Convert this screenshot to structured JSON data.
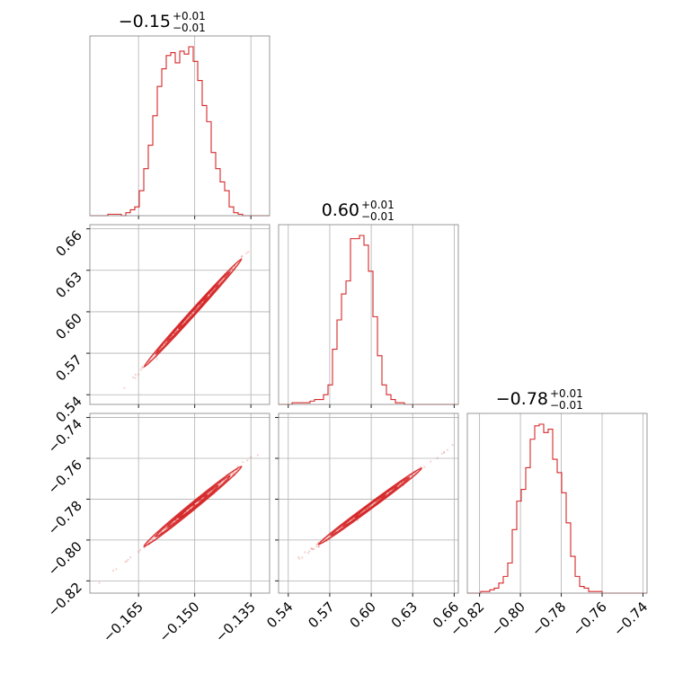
{
  "chart_data": {
    "type": "corner",
    "color": "#d62728",
    "parameters": [
      {
        "title": {
          "value": "−0.15",
          "plus": "+0.01",
          "minus": "−0.01"
        },
        "range": [
          -0.178,
          -0.13
        ],
        "ticks": [
          -0.165,
          -0.15,
          -0.135
        ],
        "tick_labels": [
          "−0.165",
          "−0.150",
          "−0.135"
        ],
        "hist": {
          "edges_start": -0.178,
          "bin_width": 0.0012,
          "counts": [
            0,
            0,
            0,
            0,
            1,
            1,
            1,
            0,
            2,
            4,
            6,
            17,
            32,
            48,
            68,
            88,
            100,
            109,
            111,
            104,
            112,
            110,
            115,
            105,
            92,
            75,
            64,
            43,
            32,
            23,
            17,
            6,
            2,
            1,
            0,
            0,
            0,
            0,
            0,
            0
          ]
        }
      },
      {
        "title": {
          "value": "0.60",
          "plus": "+0.01",
          "minus": "−0.01"
        },
        "range": [
          0.533,
          0.663
        ],
        "ticks": [
          0.54,
          0.57,
          0.6,
          0.63,
          0.66
        ],
        "tick_labels": [
          "0.54",
          "0.57",
          "0.60",
          "0.63",
          "0.66"
        ],
        "hist": {
          "edges_start": 0.533,
          "bin_width": 0.00325,
          "counts": [
            0,
            0,
            0,
            1,
            1,
            1,
            1,
            2,
            3,
            3,
            6,
            12,
            34,
            52,
            68,
            76,
            102,
            102,
            104,
            98,
            82,
            54,
            30,
            12,
            6,
            3,
            1,
            1,
            0,
            0,
            0,
            0,
            0,
            0,
            0,
            0,
            0,
            0,
            0,
            0
          ]
        }
      },
      {
        "title": {
          "value": "−0.78",
          "plus": "+0.01",
          "minus": "−0.01"
        },
        "range": [
          -0.826,
          -0.738
        ],
        "ticks": [
          -0.82,
          -0.8,
          -0.78,
          -0.76,
          -0.74
        ],
        "tick_labels": [
          "−0.82",
          "−0.80",
          "−0.78",
          "−0.76",
          "−0.74"
        ],
        "hist": {
          "edges_start": -0.826,
          "bin_width": 0.0022,
          "counts": [
            0,
            0,
            0,
            1,
            1,
            2,
            3,
            6,
            10,
            18,
            38,
            55,
            62,
            75,
            92,
            100,
            101,
            96,
            98,
            80,
            72,
            60,
            42,
            22,
            10,
            4,
            3,
            1,
            1,
            1,
            0,
            0,
            0,
            0,
            0,
            0,
            0,
            0,
            0,
            0
          ]
        }
      }
    ],
    "pairs": [
      {
        "row": 1,
        "col": 0,
        "center": [
          -0.1505,
          0.5992
        ],
        "slope": 3.0,
        "spread": 0.0011,
        "sd_along": 0.0062
      },
      {
        "row": 2,
        "col": 0,
        "center": [
          -0.1505,
          -0.7835
        ],
        "slope": 1.5,
        "spread": 0.0008,
        "sd_along": 0.0062
      },
      {
        "row": 2,
        "col": 1,
        "center": [
          0.5992,
          -0.7835
        ],
        "slope": 0.5,
        "spread": 0.0006,
        "sd_along": 0.0178
      }
    ]
  }
}
